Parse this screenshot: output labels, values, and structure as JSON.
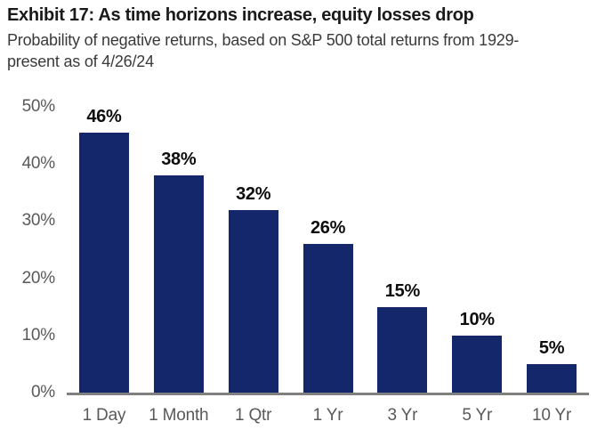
{
  "header": {
    "title": "Exhibit 17: As time horizons increase, equity losses drop",
    "subtitle": "Probability of negative returns, based on S&P 500 total returns from 1929-present as of 4/26/24"
  },
  "chart_data": {
    "type": "bar",
    "title": "Exhibit 17: As time horizons increase, equity losses drop",
    "subtitle": "Probability of negative returns, based on S&P 500 total returns from 1929-present as of 4/26/24",
    "categories": [
      "1 Day",
      "1 Month",
      "1 Qtr",
      "1 Yr",
      "3 Yr",
      "5 Yr",
      "10 Yr"
    ],
    "values": [
      46,
      38,
      32,
      26,
      15,
      10,
      5
    ],
    "value_labels": [
      "46%",
      "38%",
      "32%",
      "26%",
      "15%",
      "10%",
      "5%"
    ],
    "y_ticks": [
      "0%",
      "10%",
      "20%",
      "30%",
      "40%",
      "50%"
    ],
    "ylim": [
      0,
      50
    ],
    "xlabel": "",
    "ylabel": "",
    "grid": false,
    "legend_position": "none"
  },
  "colors": {
    "bar": "#14276b",
    "title_text": "#1a1a1a",
    "subtitle_text": "#3a3a3a",
    "axis_text": "#595959",
    "value_label_text": "#0d0d0d",
    "baseline": "#808080",
    "background": "#ffffff"
  }
}
